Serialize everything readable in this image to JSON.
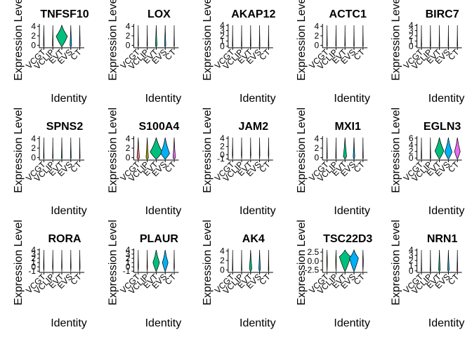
{
  "figure": {
    "ylabel": "Expression Level",
    "xlabel": "Identity",
    "categories": [
      "VCGT",
      "VCLIP",
      "EVT",
      "EVS",
      "CT"
    ]
  },
  "colors": {
    "VCGT": "#F8766D",
    "VCLIP": "#A3A500",
    "EVT": "#00BF7D",
    "EVS": "#00B0F6",
    "CT": "#E76BF3"
  },
  "chart_data": [
    {
      "type": "violin",
      "title": "TNFSF10",
      "yticks": [
        "4",
        "2",
        "0"
      ],
      "ylim": [
        -0.5,
        4.5
      ],
      "violins": [
        {
          "peak": 0,
          "amp": 0.05
        },
        {
          "peak": 0,
          "amp": 0.05
        },
        {
          "peak": 1.9,
          "amp": 0.7
        },
        {
          "peak": 0,
          "amp": 0.1
        },
        {
          "peak": 0,
          "amp": 0.05
        }
      ]
    },
    {
      "type": "violin",
      "title": "LOX",
      "yticks": [
        "4",
        "2",
        "0"
      ],
      "ylim": [
        -0.5,
        4.5
      ],
      "violins": [
        {
          "peak": 0,
          "amp": 0.03
        },
        {
          "peak": 0,
          "amp": 0.03
        },
        {
          "peak": 0,
          "amp": 0.1
        },
        {
          "peak": 0,
          "amp": 0.08
        },
        {
          "peak": 0,
          "amp": 0.03
        }
      ]
    },
    {
      "type": "violin",
      "title": "AKAP12",
      "yticks": [
        "4",
        "3",
        "2",
        "1",
        "0"
      ],
      "ylim": [
        -0.3,
        4.3
      ],
      "violins": [
        {
          "peak": 0,
          "amp": 0.02
        },
        {
          "peak": 0,
          "amp": 0.02
        },
        {
          "peak": 0,
          "amp": 0.04
        },
        {
          "peak": 0,
          "amp": 0.04
        },
        {
          "peak": 0,
          "amp": 0.02
        }
      ]
    },
    {
      "type": "violin",
      "title": "ACTC1",
      "yticks": [
        "4",
        "2",
        "0"
      ],
      "ylim": [
        -0.5,
        4.5
      ],
      "violins": [
        {
          "peak": 0,
          "amp": 0.02
        },
        {
          "peak": 0,
          "amp": 0.02
        },
        {
          "peak": 0,
          "amp": 0.03
        },
        {
          "peak": 0,
          "amp": 0.03
        },
        {
          "peak": 0,
          "amp": 0.02
        }
      ]
    },
    {
      "type": "violin",
      "title": "BIRC7",
      "yticks": [
        "4",
        "3",
        "2",
        "1",
        "0"
      ],
      "ylim": [
        -0.3,
        4.3
      ],
      "violins": [
        {
          "peak": 0,
          "amp": 0.02
        },
        {
          "peak": 0,
          "amp": 0.02
        },
        {
          "peak": 0,
          "amp": 0.03
        },
        {
          "peak": 0,
          "amp": 0.03
        },
        {
          "peak": 0,
          "amp": 0.02
        }
      ]
    },
    {
      "type": "violin",
      "title": "SPNS2",
      "yticks": [
        "4",
        "2",
        "0"
      ],
      "ylim": [
        -0.5,
        4.5
      ],
      "violins": [
        {
          "peak": 0,
          "amp": 0.03
        },
        {
          "peak": 0,
          "amp": 0.03
        },
        {
          "peak": 0,
          "amp": 0.05
        },
        {
          "peak": 0,
          "amp": 0.05
        },
        {
          "peak": 0,
          "amp": 0.03
        }
      ]
    },
    {
      "type": "violin",
      "title": "S100A4",
      "yticks": [
        "4",
        "2",
        "0"
      ],
      "ylim": [
        -0.5,
        4.5
      ],
      "violins": [
        {
          "peak": 0,
          "amp": 0.15
        },
        {
          "peak": 0,
          "amp": 0.15
        },
        {
          "peak": 1.2,
          "amp": 0.75
        },
        {
          "peak": 0.9,
          "amp": 0.55
        },
        {
          "peak": 0,
          "amp": 0.15
        }
      ]
    },
    {
      "type": "violin",
      "title": "JAM2",
      "yticks": [
        "4",
        "2",
        "0",
        "-1"
      ],
      "ylim": [
        -1.3,
        4.5
      ],
      "violins": [
        {
          "peak": 0,
          "amp": 0.02
        },
        {
          "peak": 0,
          "amp": 0.02
        },
        {
          "peak": 0,
          "amp": 0.03
        },
        {
          "peak": 0,
          "amp": 0.03
        },
        {
          "peak": 0,
          "amp": 0.02
        }
      ]
    },
    {
      "type": "violin",
      "title": "MXI1",
      "yticks": [
        "4",
        "2",
        "0"
      ],
      "ylim": [
        -0.5,
        4.5
      ],
      "violins": [
        {
          "peak": 0,
          "amp": 0.04
        },
        {
          "peak": 0,
          "amp": 0.04
        },
        {
          "peak": 0.3,
          "amp": 0.2
        },
        {
          "peak": 0.2,
          "amp": 0.1
        },
        {
          "peak": 0,
          "amp": 0.04
        }
      ]
    },
    {
      "type": "violin",
      "title": "EGLN3",
      "yticks": [
        "6",
        "4",
        "2",
        "0"
      ],
      "ylim": [
        -0.6,
        6.6
      ],
      "violins": [
        {
          "peak": 0,
          "amp": 0.04
        },
        {
          "peak": 0,
          "amp": 0.04
        },
        {
          "peak": 2.2,
          "amp": 0.55
        },
        {
          "peak": 1.8,
          "amp": 0.45
        },
        {
          "peak": 2.0,
          "amp": 0.35
        }
      ]
    },
    {
      "type": "violin",
      "title": "RORA",
      "yticks": [
        "4",
        "3",
        "2",
        "1",
        "0",
        "-1"
      ],
      "ylim": [
        -1.3,
        4.3
      ],
      "violins": [
        {
          "peak": 0,
          "amp": 0.02
        },
        {
          "peak": 0,
          "amp": 0.02
        },
        {
          "peak": 0,
          "amp": 0.03
        },
        {
          "peak": 0,
          "amp": 0.03
        },
        {
          "peak": 0,
          "amp": 0.02
        }
      ]
    },
    {
      "type": "violin",
      "title": "PLAUR",
      "yticks": [
        "4",
        "3",
        "2",
        "1",
        "0",
        "-1"
      ],
      "ylim": [
        -1.3,
        4.3
      ],
      "violins": [
        {
          "peak": 0,
          "amp": 0.02
        },
        {
          "peak": 0,
          "amp": 0.02
        },
        {
          "peak": 1.0,
          "amp": 0.4
        },
        {
          "peak": 1.0,
          "amp": 0.35
        },
        {
          "peak": 0,
          "amp": 0.02
        }
      ]
    },
    {
      "type": "violin",
      "title": "AK4",
      "yticks": [
        "4",
        "2",
        "0"
      ],
      "ylim": [
        -0.5,
        4.5
      ],
      "violins": [
        {
          "peak": 0,
          "amp": 0.02
        },
        {
          "peak": 0,
          "amp": 0.02
        },
        {
          "peak": 0.3,
          "amp": 0.15
        },
        {
          "peak": 0.2,
          "amp": 0.1
        },
        {
          "peak": 0,
          "amp": 0.02
        }
      ]
    },
    {
      "type": "violin",
      "title": "TSC22D3",
      "yticks": [
        "2.5",
        "0.0",
        "-2.5"
      ],
      "ylim": [
        -3.2,
        3.5
      ],
      "violins": [
        {
          "peak": 0,
          "amp": 0.05
        },
        {
          "peak": 0,
          "amp": 0.05
        },
        {
          "peak": 1.2,
          "amp": 0.7
        },
        {
          "peak": 0.8,
          "amp": 0.55
        },
        {
          "peak": 0,
          "amp": 0.05
        }
      ]
    },
    {
      "type": "violin",
      "title": "NRN1",
      "yticks": [
        "4",
        "3",
        "2",
        "1",
        "0"
      ],
      "ylim": [
        -0.3,
        4.3
      ],
      "violins": [
        {
          "peak": 0,
          "amp": 0.02
        },
        {
          "peak": 0,
          "amp": 0.02
        },
        {
          "peak": 0.2,
          "amp": 0.1
        },
        {
          "peak": 0.2,
          "amp": 0.1
        },
        {
          "peak": 0,
          "amp": 0.05
        }
      ]
    }
  ]
}
